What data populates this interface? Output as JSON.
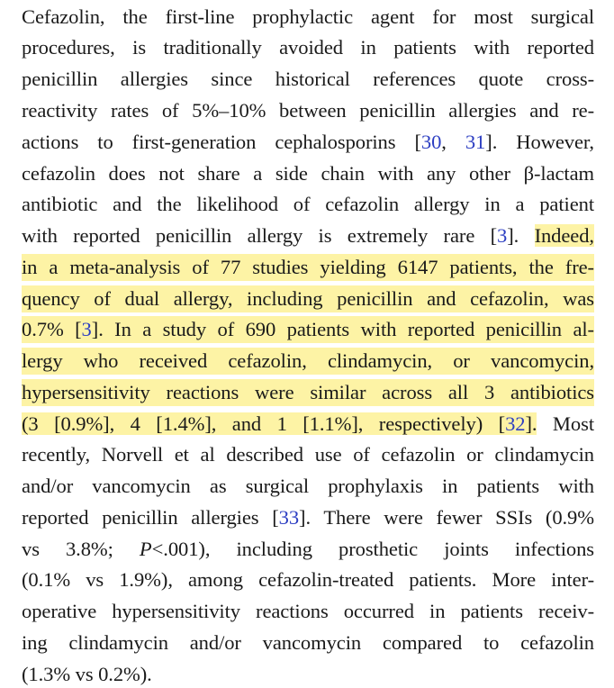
{
  "paragraph": {
    "l1": "Cefazolin, the first-line prophylactic agent for most surgical",
    "l2": "procedures, is traditionally avoided in patients with reported",
    "l3": "penicillin allergies since historical references quote cross-",
    "l4": "reactivity rates of 5%–10% between penicillin allergies and re-",
    "l5a": "actions to first-generation cephalosporins ",
    "l5b": ". However,",
    "l6": "cefazolin does not share a side chain with any other β-lactam",
    "l7": "antibiotic and the likelihood of cefazolin allergy in a patient",
    "l8a": "with reported penicillin allergy is extremely rare ",
    "l8b": ". ",
    "l8c": "Indeed,",
    "l9": "in a meta-analysis of 77 studies yielding 6147 patients, the fre-",
    "l10": "quency of dual allergy, including penicillin and cefazolin, was",
    "l11a": "0.7% ",
    "l11b": ". In a study of 690 patients with reported penicillin al-",
    "l12": "lergy who received cefazolin, clindamycin, or vancomycin,",
    "l13": "hypersensitivity reactions were similar across all 3 antibiotics",
    "l14a": "(3 [0.9%], 4 [1.4%], and 1 [1.1%], respectively) ",
    "l14b": ".",
    "l14c": " Most",
    "l15": "recently, Norvell et al described use of cefazolin or clindamycin",
    "l16": "and/or vancomycin as surgical prophylaxis in patients with",
    "l17a": "reported penicillin allergies ",
    "l17b": ". There were fewer SSIs (0.9%",
    "l18a": "vs 3.8%; ",
    "l18p": "P",
    "l18b": "<.001), including prosthetic joints infections",
    "l19": "(0.1% vs 1.9%), among cefazolin-treated patients. More inter-",
    "l20": "operative hypersensitivity reactions occurred in patients receiv-",
    "l21": "ing clindamycin and/or vancomycin compared to cefazolin",
    "l22": "(1.3% vs 0.2%)."
  },
  "citations": {
    "c30": "30",
    "sep": ", ",
    "c31": "31",
    "c3": "3",
    "c32": "32",
    "c33": "33",
    "open": "[",
    "close": "]"
  },
  "colors": {
    "highlight": "#fdf3a5",
    "citation_link": "#2c3ec2",
    "text": "#1a1a1a"
  }
}
